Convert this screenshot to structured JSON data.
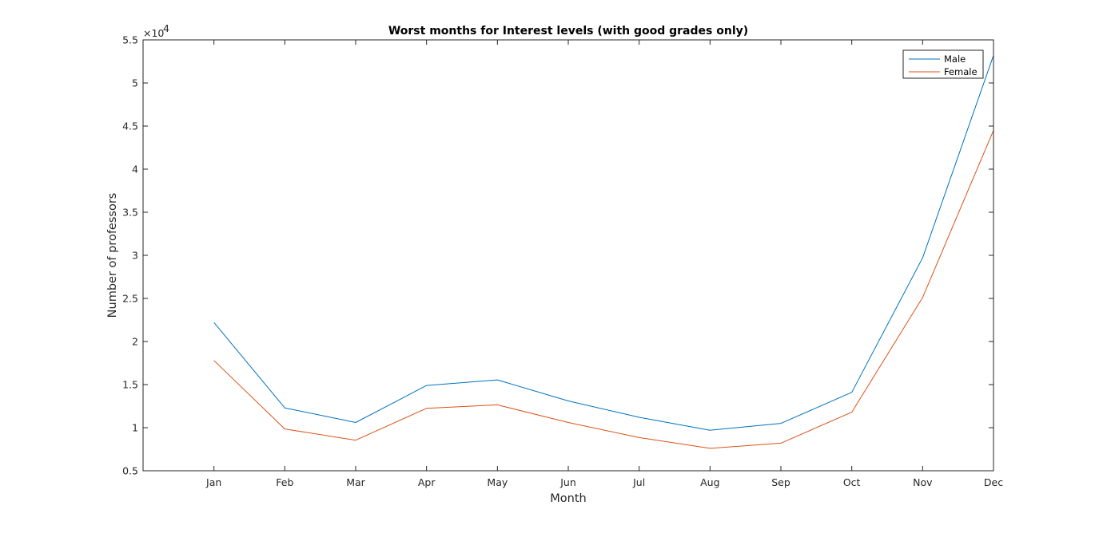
{
  "chart_data": {
    "type": "line",
    "title": "Worst months for Interest levels (with good grades only)",
    "xlabel": "Month",
    "ylabel": "Number of professors",
    "y_exponent_base": "×10",
    "y_exponent_power": "4",
    "y_multiplier": 10000,
    "categories": [
      "Jan",
      "Feb",
      "Mar",
      "Apr",
      "May",
      "Jun",
      "Jul",
      "Aug",
      "Sep",
      "Oct",
      "Nov",
      "Dec"
    ],
    "xlim": [
      0,
      12
    ],
    "ylim": [
      0.5,
      5.5
    ],
    "yticks": [
      0.5,
      1,
      1.5,
      2,
      2.5,
      3,
      3.5,
      4,
      4.5,
      5,
      5.5
    ],
    "ytick_labels": [
      "0.5",
      "1",
      "1.5",
      "2",
      "2.5",
      "3",
      "3.5",
      "4",
      "4.5",
      "5",
      "5.5"
    ],
    "grid": false,
    "legend_position": "top-right",
    "series": [
      {
        "name": "Male",
        "color": "#0072BD",
        "values": [
          2.22,
          1.23,
          1.06,
          1.49,
          1.555,
          1.31,
          1.12,
          0.97,
          1.05,
          1.41,
          2.97,
          5.32
        ]
      },
      {
        "name": "Female",
        "color": "#D95319",
        "values": [
          1.78,
          0.985,
          0.855,
          1.225,
          1.265,
          1.06,
          0.885,
          0.76,
          0.82,
          1.18,
          2.51,
          4.45
        ]
      }
    ]
  }
}
